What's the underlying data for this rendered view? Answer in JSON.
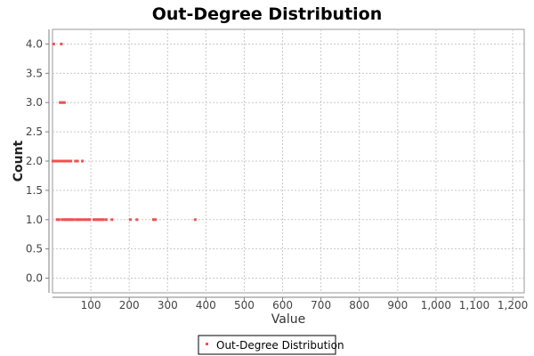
{
  "chart_data": {
    "type": "scatter",
    "title": "Out-Degree Distribution",
    "xlabel": "Value",
    "ylabel": "Count",
    "xlim": [
      0,
      1230
    ],
    "ylim": [
      -0.25,
      4.25
    ],
    "x_ticks": [
      100,
      200,
      300,
      400,
      500,
      600,
      700,
      800,
      900,
      1000,
      1100,
      1200
    ],
    "x_tick_labels": [
      "100",
      "200",
      "300",
      "400",
      "500",
      "600",
      "700",
      "800",
      "900",
      "1,000",
      "1,100",
      "1,200"
    ],
    "y_ticks": [
      0,
      0.5,
      1,
      1.5,
      2,
      2.5,
      3,
      3.5,
      4
    ],
    "y_tick_labels": [
      "0.0",
      "0.5",
      "1.0",
      "1.5",
      "2.0",
      "2.5",
      "3.0",
      "3.5",
      "4.0"
    ],
    "grid": true,
    "legend_position": "bottom-center",
    "series": [
      {
        "name": "Out-Degree Distribution",
        "color": "#f05050",
        "points": [
          {
            "x": 3,
            "y": 4
          },
          {
            "x": 23,
            "y": 4
          },
          {
            "x": 20,
            "y": 3
          },
          {
            "x": 26,
            "y": 3
          },
          {
            "x": 31,
            "y": 3
          },
          {
            "x": 1,
            "y": 2
          },
          {
            "x": 4,
            "y": 2
          },
          {
            "x": 7,
            "y": 2
          },
          {
            "x": 10,
            "y": 2
          },
          {
            "x": 13,
            "y": 2
          },
          {
            "x": 16,
            "y": 2
          },
          {
            "x": 19,
            "y": 2
          },
          {
            "x": 22,
            "y": 2
          },
          {
            "x": 25,
            "y": 2
          },
          {
            "x": 28,
            "y": 2
          },
          {
            "x": 33,
            "y": 2
          },
          {
            "x": 38,
            "y": 2
          },
          {
            "x": 44,
            "y": 2
          },
          {
            "x": 48,
            "y": 2
          },
          {
            "x": 60,
            "y": 2
          },
          {
            "x": 65,
            "y": 2
          },
          {
            "x": 78,
            "y": 2
          },
          {
            "x": 12,
            "y": 1
          },
          {
            "x": 17,
            "y": 1
          },
          {
            "x": 25,
            "y": 1
          },
          {
            "x": 30,
            "y": 1
          },
          {
            "x": 34,
            "y": 1
          },
          {
            "x": 38,
            "y": 1
          },
          {
            "x": 42,
            "y": 1
          },
          {
            "x": 46,
            "y": 1
          },
          {
            "x": 50,
            "y": 1
          },
          {
            "x": 55,
            "y": 1
          },
          {
            "x": 62,
            "y": 1
          },
          {
            "x": 66,
            "y": 1
          },
          {
            "x": 70,
            "y": 1
          },
          {
            "x": 76,
            "y": 1
          },
          {
            "x": 82,
            "y": 1
          },
          {
            "x": 87,
            "y": 1
          },
          {
            "x": 93,
            "y": 1
          },
          {
            "x": 97,
            "y": 1
          },
          {
            "x": 108,
            "y": 1
          },
          {
            "x": 113,
            "y": 1
          },
          {
            "x": 118,
            "y": 1
          },
          {
            "x": 123,
            "y": 1
          },
          {
            "x": 128,
            "y": 1
          },
          {
            "x": 133,
            "y": 1
          },
          {
            "x": 140,
            "y": 1
          },
          {
            "x": 155,
            "y": 1
          },
          {
            "x": 203,
            "y": 1
          },
          {
            "x": 220,
            "y": 1
          },
          {
            "x": 263,
            "y": 1
          },
          {
            "x": 268,
            "y": 1
          },
          {
            "x": 372,
            "y": 1
          }
        ]
      }
    ]
  }
}
